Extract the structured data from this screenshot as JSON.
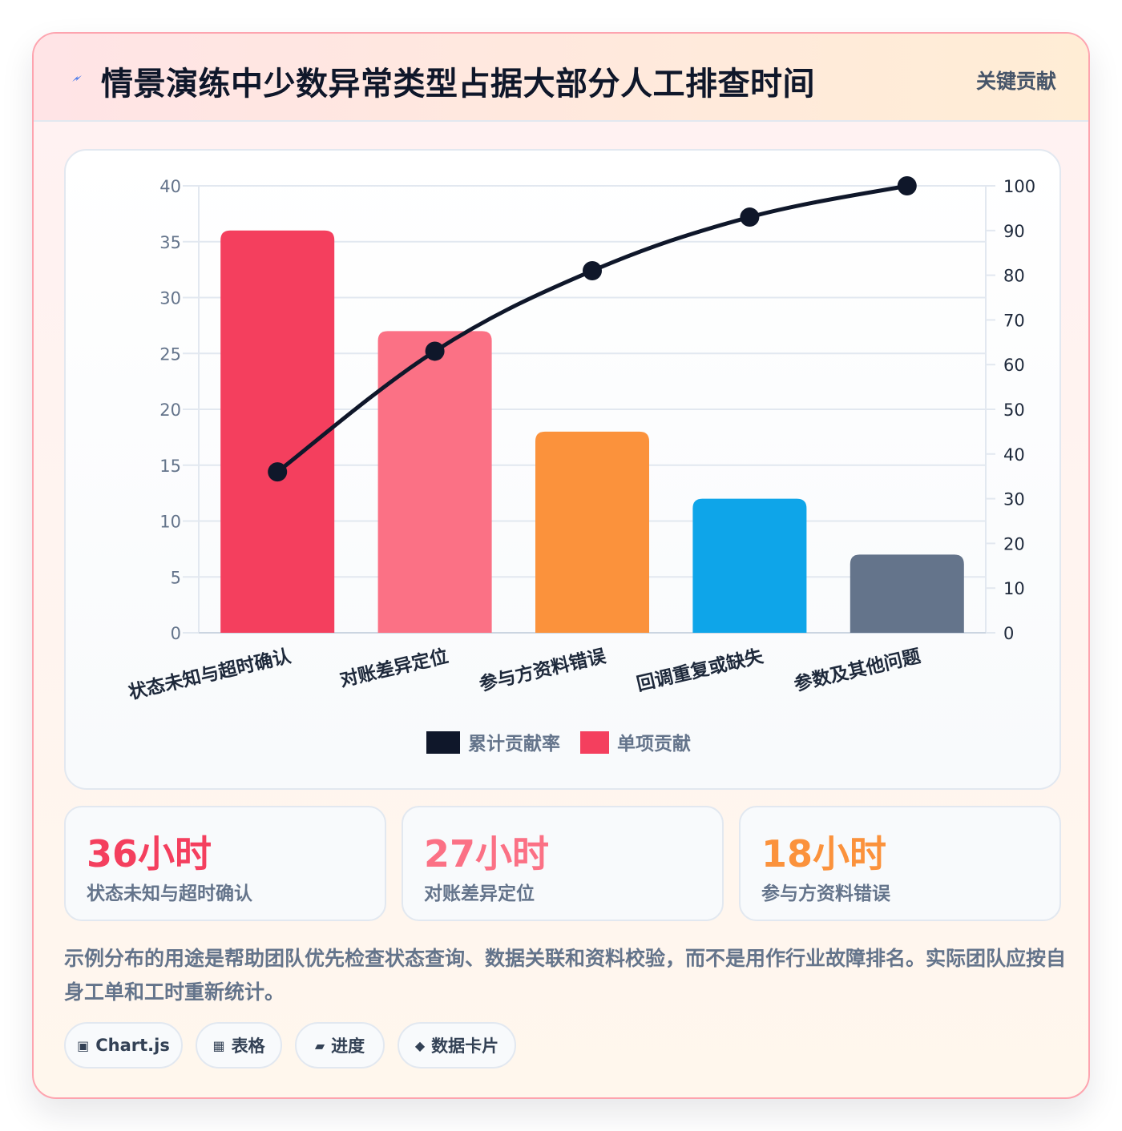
{
  "header": {
    "icon": "lightning-bolt-icon",
    "title": "情景演练中少数异常类型占据大部分人工排查时间",
    "badge": "关键贡献"
  },
  "chart_data": {
    "type": "bar",
    "categories": [
      "状态未知与超时确认",
      "对账差异定位",
      "参与方资料错误",
      "回调重复或缺失",
      "参数及其他问题"
    ],
    "series": [
      {
        "name": "单项贡献",
        "type": "bar",
        "axis": "left",
        "values": [
          36,
          27,
          18,
          12,
          7
        ],
        "colors": [
          "#f43f5e",
          "#fb7185",
          "#fb923c",
          "#0ea5e9",
          "#64748b"
        ]
      },
      {
        "name": "累计贡献率",
        "type": "line",
        "axis": "right",
        "values": [
          36,
          63,
          81,
          93,
          100
        ],
        "color": "#0f172a"
      }
    ],
    "yleft": {
      "min": 0,
      "max": 40,
      "ticks": [
        0,
        5,
        10,
        15,
        20,
        25,
        30,
        35,
        40
      ]
    },
    "yright": {
      "min": 0,
      "max": 100,
      "ticks": [
        0,
        10,
        20,
        30,
        40,
        50,
        60,
        70,
        80,
        90,
        100
      ]
    },
    "legend": [
      {
        "label": "累计贡献率",
        "color": "#0f172a"
      },
      {
        "label": "单项贡献",
        "color": "#f43f5e"
      }
    ],
    "legend_position": "bottom",
    "grid": true
  },
  "stats": [
    {
      "value": "36小时",
      "label": "状态未知与超时确认",
      "color": "#f43f5e"
    },
    {
      "value": "27小时",
      "label": "对账差异定位",
      "color": "#fb7185"
    },
    {
      "value": "18小时",
      "label": "参与方资料错误",
      "color": "#fb923c"
    }
  ],
  "note": "示例分布的用途是帮助团队优先检查状态查询、数据关联和资料校验，而不是用作行业故障排名。实际团队应按自身工单和工时重新统计。",
  "tags": [
    {
      "icon": "▣",
      "label": "Chart.js"
    },
    {
      "icon": "▦",
      "label": "表格"
    },
    {
      "icon": "▰",
      "label": "进度"
    },
    {
      "icon": "◆",
      "label": "数据卡片"
    }
  ]
}
